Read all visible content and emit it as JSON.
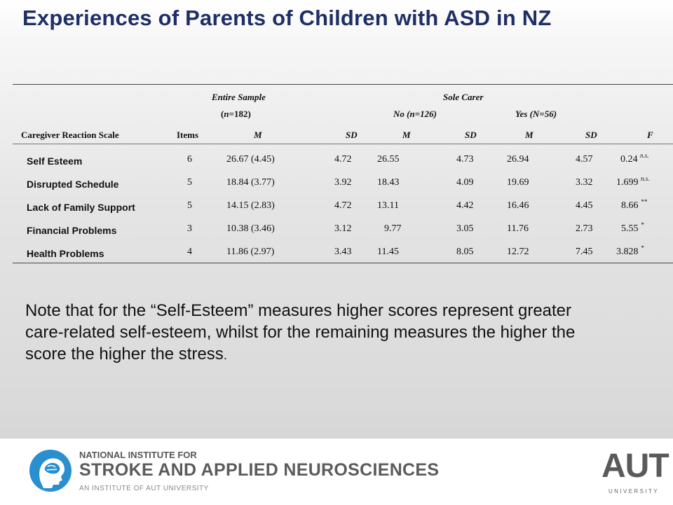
{
  "slide": {
    "title": "Experiences of Parents of Children with ASD in NZ"
  },
  "table": {
    "group_headers": {
      "entire_sample": "Entire Sample",
      "entire_sample_n": "(n=182)",
      "sole_carer": "Sole Carer",
      "no": "No (n=126)",
      "yes": "Yes (N=56)"
    },
    "columns": [
      "Caregiver Reaction Scale",
      "Items",
      "M",
      "SD",
      "M",
      "SD",
      "M",
      "SD",
      "F"
    ],
    "rows": [
      {
        "scale": "Self Esteem",
        "items": "6",
        "entire_m": "26.67 (4.45)",
        "entire_sd": "4.72",
        "no_m": "26.55",
        "no_sd": "4.73",
        "yes_m": "26.94",
        "yes_sd": "4.57",
        "f": "0.24",
        "f_sig": "n.s."
      },
      {
        "scale": "Disrupted Schedule",
        "items": "5",
        "entire_m": "18.84 (3.77)",
        "entire_sd": "3.92",
        "no_m": "18.43",
        "no_sd": "4.09",
        "yes_m": "19.69",
        "yes_sd": "3.32",
        "f": "1.699",
        "f_sig": "n.s."
      },
      {
        "scale": "Lack of Family Support",
        "items": "5",
        "entire_m": "14.15 (2.83)",
        "entire_sd": "4.72",
        "no_m": "13.11",
        "no_sd": "4.42",
        "yes_m": "16.46",
        "yes_sd": "4.45",
        "f": "8.66",
        "f_sig": "**"
      },
      {
        "scale": "Financial Problems",
        "items": "3",
        "entire_m": "10.38 (3.46)",
        "entire_sd": "3.12",
        "no_m": "9.77",
        "no_sd": "3.05",
        "yes_m": "11.76",
        "yes_sd": "2.73",
        "f": "5.55",
        "f_sig": "*"
      },
      {
        "scale": "Health Problems",
        "items": "4",
        "entire_m": "11.86 (2.97)",
        "entire_sd": "3.43",
        "no_m": "11.45",
        "no_sd": "8.05",
        "yes_m": "12.72",
        "yes_sd": "7.45",
        "f": "3.828",
        "f_sig": "*"
      }
    ]
  },
  "note": {
    "text": "Note that for the “Self-Esteem” measures higher scores represent greater care-related self-esteem, whilst for the remaining  measures the higher the score the higher the stress",
    "tail": "."
  },
  "footer": {
    "institute_line1": "NATIONAL INSTITUTE FOR",
    "institute_line2": "STROKE AND APPLIED NEUROSCIENCES",
    "institute_line3": "AN INSTITUTE OF AUT UNIVERSITY",
    "aut_logo_text": "AUT",
    "aut_logo_sub": "UNIVERSITY",
    "colors": {
      "title": "#1f2f66",
      "logo_blue": "#2a8fcf",
      "logo_grey": "#5b5b5b"
    },
    "icons": [
      "brain-head-logo-icon"
    ]
  }
}
